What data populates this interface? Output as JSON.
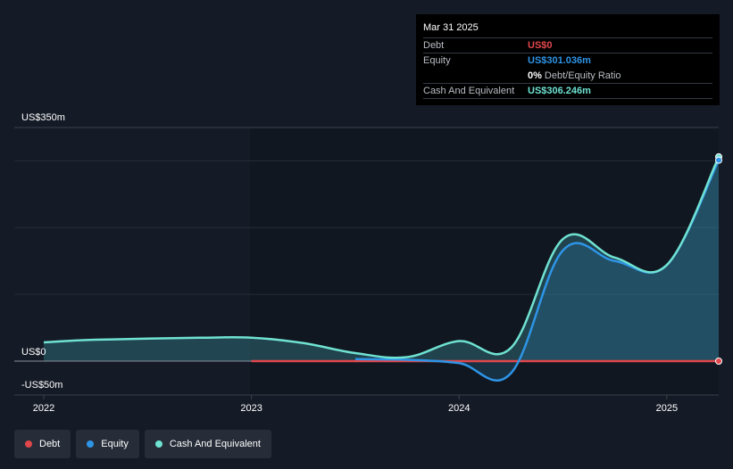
{
  "tooltip": {
    "date": "Mar 31 2025",
    "debt_label": "Debt",
    "debt_value": "US$0",
    "equity_label": "Equity",
    "equity_value": "US$301.036m",
    "ratio_value": "0%",
    "ratio_label": "Debt/Equity Ratio",
    "cash_label": "Cash And Equivalent",
    "cash_value": "US$306.246m"
  },
  "legend": {
    "debt": "Debt",
    "equity": "Equity",
    "cash": "Cash And Equivalent"
  },
  "colors": {
    "debt": "#e0474c",
    "equity": "#2e94e6",
    "cash": "#6fe2d2",
    "background": "#151b26"
  },
  "chart_data": {
    "type": "area",
    "y_top_label": "US$350m",
    "y_zero_label": "US$0",
    "y_bottom_label": "-US$50m",
    "ylim": [
      -50,
      350
    ],
    "xlim": [
      2022.0,
      2025.25
    ],
    "x_ticks": [
      {
        "value": 2022.0,
        "label": "2022"
      },
      {
        "value": 2023.0,
        "label": "2023"
      },
      {
        "value": 2024.0,
        "label": "2024"
      },
      {
        "value": 2025.0,
        "label": "2025"
      }
    ],
    "y_gridlines": [
      300,
      200,
      100,
      0
    ],
    "series": [
      {
        "name": "Cash And Equivalent",
        "key": "cash",
        "x": [
          2021.75,
          2022.25,
          2022.75,
          2023.0,
          2023.25,
          2023.5,
          2023.75,
          2024.0,
          2024.25,
          2024.5,
          2024.75,
          2025.0,
          2025.25
        ],
        "y": [
          28,
          32,
          35,
          35,
          27,
          12,
          6,
          30,
          20,
          183,
          155,
          144,
          306
        ]
      },
      {
        "name": "Equity",
        "key": "equity",
        "x": [
          2023.5,
          2023.75,
          2024.0,
          2024.25,
          2024.5,
          2024.75,
          2025.0,
          2025.25
        ],
        "y": [
          3,
          2,
          -3,
          -18,
          166,
          150,
          144,
          301
        ]
      },
      {
        "name": "Debt",
        "key": "debt",
        "x": [
          2023.0,
          2025.25
        ],
        "y": [
          0,
          0
        ]
      }
    ]
  }
}
